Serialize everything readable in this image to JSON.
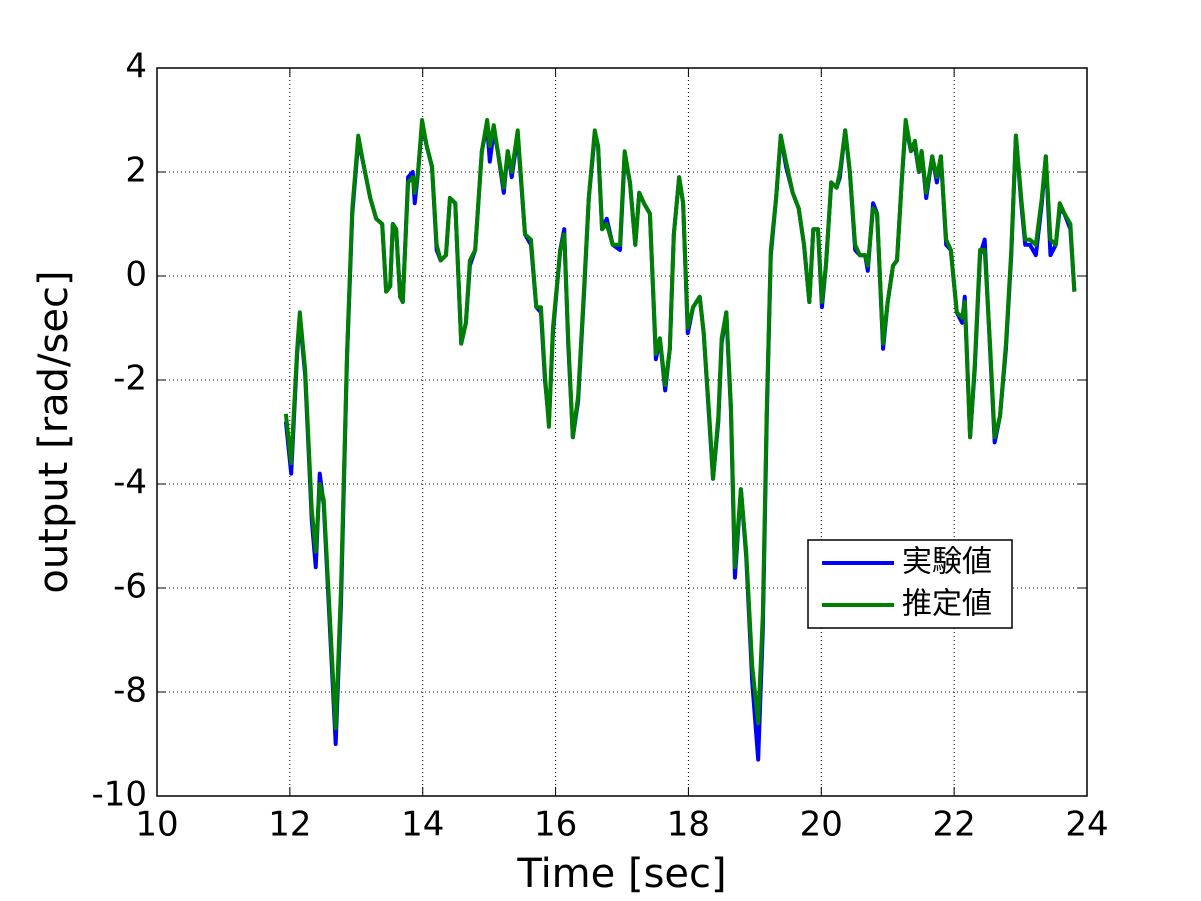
{
  "chart_data": {
    "type": "line",
    "xlabel": "Time [sec]",
    "ylabel": "output [rad/sec]",
    "xlim": [
      10,
      24
    ],
    "ylim": [
      -10,
      4
    ],
    "xticks": [
      10,
      12,
      14,
      16,
      18,
      20,
      22,
      24
    ],
    "yticks": [
      -10,
      -8,
      -6,
      -4,
      -2,
      0,
      2,
      4
    ],
    "grid": true,
    "legend": "center right",
    "x": [
      11.94,
      12.02,
      12.11,
      12.15,
      12.23,
      12.33,
      12.39,
      12.45,
      12.51,
      12.6,
      12.69,
      12.77,
      12.86,
      12.94,
      13.03,
      13.1,
      13.21,
      13.3,
      13.39,
      13.45,
      13.51,
      13.55,
      13.6,
      13.66,
      13.7,
      13.78,
      13.85,
      13.88,
      13.93,
      13.99,
      14.06,
      14.14,
      14.21,
      14.27,
      14.35,
      14.41,
      14.49,
      14.58,
      14.65,
      14.71,
      14.79,
      14.89,
      14.97,
      15.01,
      15.07,
      15.13,
      15.22,
      15.28,
      15.34,
      15.43,
      15.54,
      15.63,
      15.71,
      15.78,
      15.84,
      15.9,
      15.96,
      16.07,
      16.13,
      16.19,
      16.26,
      16.34,
      16.43,
      16.5,
      16.59,
      16.64,
      16.7,
      16.77,
      16.86,
      16.97,
      17.04,
      17.12,
      17.2,
      17.26,
      17.33,
      17.42,
      17.51,
      17.57,
      17.65,
      17.72,
      17.78,
      17.86,
      17.92,
      17.99,
      18.07,
      18.17,
      18.23,
      18.32,
      18.37,
      18.45,
      18.5,
      18.57,
      18.64,
      18.7,
      18.79,
      18.87,
      18.96,
      19.05,
      19.12,
      19.18,
      19.24,
      19.32,
      19.39,
      19.47,
      19.57,
      19.66,
      19.74,
      19.82,
      19.88,
      19.95,
      20.01,
      20.07,
      20.15,
      20.23,
      20.28,
      20.36,
      20.43,
      20.51,
      20.58,
      20.66,
      20.7,
      20.78,
      20.84,
      20.93,
      21.0,
      21.08,
      21.14,
      21.21,
      21.27,
      21.35,
      21.41,
      21.47,
      21.51,
      21.58,
      21.67,
      21.74,
      21.8,
      21.88,
      21.95,
      22.04,
      22.12,
      22.16,
      22.24,
      22.31,
      22.39,
      22.46,
      22.54,
      22.61,
      22.69,
      22.78,
      22.86,
      22.93,
      23.01,
      23.07,
      23.14,
      23.23,
      23.32,
      23.38,
      23.45,
      23.53,
      23.59,
      23.66,
      23.75,
      23.81
    ],
    "series": [
      {
        "name": "実験値",
        "color": "#0000ff",
        "values": [
          -2.8,
          -3.8,
          -1.5,
          -0.8,
          -1.9,
          -4.7,
          -5.6,
          -3.8,
          -4.4,
          -6.7,
          -9.0,
          -6.3,
          -1.6,
          1.2,
          2.6,
          2.2,
          1.5,
          1.1,
          1.0,
          -0.3,
          -0.2,
          1.0,
          0.9,
          -0.4,
          -0.5,
          1.9,
          2.0,
          1.4,
          2.0,
          2.9,
          2.5,
          2.1,
          0.5,
          0.3,
          0.4,
          1.5,
          1.4,
          -1.3,
          -0.9,
          0.2,
          0.5,
          2.4,
          2.9,
          2.2,
          2.8,
          2.4,
          1.6,
          2.4,
          1.9,
          2.7,
          0.8,
          0.6,
          -0.6,
          -0.7,
          -2.0,
          -2.8,
          -1.1,
          0.5,
          0.9,
          -1.3,
          -3.1,
          -2.4,
          -0.3,
          1.5,
          2.7,
          2.5,
          0.9,
          1.1,
          0.6,
          0.5,
          2.3,
          1.8,
          0.6,
          1.6,
          1.4,
          1.2,
          -1.6,
          -1.2,
          -2.2,
          -1.4,
          0.8,
          1.9,
          1.4,
          -1.1,
          -0.6,
          -0.4,
          -1.1,
          -2.9,
          -3.9,
          -2.8,
          -1.3,
          -0.7,
          -2.6,
          -5.8,
          -4.1,
          -5.4,
          -7.8,
          -9.3,
          -6.8,
          -2.7,
          0.4,
          1.5,
          2.7,
          2.1,
          1.6,
          1.3,
          0.6,
          -0.5,
          0.9,
          0.9,
          -0.6,
          0.2,
          1.8,
          1.7,
          1.9,
          2.8,
          2.0,
          0.5,
          0.4,
          0.4,
          0.1,
          1.4,
          1.2,
          -1.4,
          -0.5,
          0.2,
          0.3,
          1.8,
          2.9,
          2.4,
          2.5,
          2.0,
          2.4,
          1.5,
          2.3,
          1.8,
          2.3,
          0.6,
          0.5,
          -0.7,
          -0.9,
          -0.4,
          -3.1,
          -1.8,
          0.4,
          0.7,
          -1.4,
          -3.2,
          -2.7,
          -1.4,
          0.4,
          2.7,
          1.4,
          0.6,
          0.6,
          0.4,
          1.4,
          2.3,
          0.4,
          0.6,
          1.3,
          1.2,
          0.9,
          -0.3
        ]
      },
      {
        "name": "推定値",
        "color": "#008000",
        "values": [
          -2.65,
          -3.6,
          -1.4,
          -0.7,
          -1.8,
          -4.5,
          -5.3,
          -4.0,
          -4.3,
          -6.5,
          -8.7,
          -6.0,
          -1.5,
          1.3,
          2.7,
          2.2,
          1.5,
          1.1,
          1.0,
          -0.3,
          -0.2,
          1.0,
          0.9,
          -0.4,
          -0.5,
          1.8,
          1.9,
          1.6,
          2.0,
          3.0,
          2.5,
          2.1,
          0.6,
          0.3,
          0.4,
          1.5,
          1.4,
          -1.3,
          -0.9,
          0.3,
          0.5,
          2.4,
          3.0,
          2.5,
          2.9,
          2.4,
          1.7,
          2.4,
          2.0,
          2.8,
          0.8,
          0.7,
          -0.6,
          -0.6,
          -1.9,
          -2.9,
          -1.0,
          0.5,
          0.8,
          -1.2,
          -3.1,
          -2.3,
          -0.2,
          1.5,
          2.8,
          2.5,
          0.9,
          1.0,
          0.6,
          0.6,
          2.4,
          1.8,
          0.6,
          1.6,
          1.4,
          1.2,
          -1.5,
          -1.2,
          -2.1,
          -1.4,
          0.8,
          1.9,
          1.4,
          -1.0,
          -0.6,
          -0.4,
          -1.1,
          -2.8,
          -3.9,
          -2.7,
          -1.2,
          -0.7,
          -2.5,
          -5.6,
          -4.1,
          -5.3,
          -7.5,
          -8.6,
          -6.5,
          -2.5,
          0.5,
          1.5,
          2.7,
          2.2,
          1.6,
          1.3,
          0.6,
          -0.5,
          0.9,
          0.9,
          -0.5,
          0.2,
          1.8,
          1.7,
          2.0,
          2.8,
          2.0,
          0.6,
          0.4,
          0.4,
          0.2,
          1.3,
          1.2,
          -1.3,
          -0.5,
          0.2,
          0.3,
          1.8,
          3.0,
          2.4,
          2.6,
          2.0,
          2.4,
          1.6,
          2.3,
          1.9,
          2.3,
          0.7,
          0.5,
          -0.7,
          -0.8,
          -0.5,
          -3.1,
          -1.7,
          0.5,
          0.5,
          -1.3,
          -3.1,
          -2.7,
          -1.3,
          0.5,
          2.7,
          1.5,
          0.7,
          0.7,
          0.6,
          1.5,
          2.3,
          0.7,
          0.6,
          1.4,
          1.2,
          1.0,
          -0.3
        ]
      }
    ]
  }
}
